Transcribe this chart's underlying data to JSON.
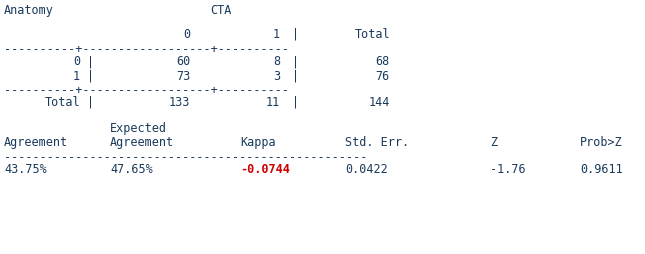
{
  "bg_color": "#ffffff",
  "text_color": "#1a3a5c",
  "red_color": "#cc0000",
  "font_family": "DejaVu Sans Mono",
  "fig_w": 6.45,
  "fig_h": 2.54,
  "dpi": 100,
  "title_anatomy": "Anatomy",
  "title_cta": "CTA",
  "dash_short": "----------+------------------+----------",
  "dash_long": "---------------------------------------------------",
  "stats_expected": "Expected",
  "stats_header": [
    "Agreement",
    "Agreement",
    "Kappa",
    "Std. Err.",
    "Z",
    "Prob>Z"
  ],
  "stats_data": [
    "43.75%",
    "47.65%",
    "-0.0744",
    "0.0422",
    "-1.76",
    "0.9611"
  ]
}
